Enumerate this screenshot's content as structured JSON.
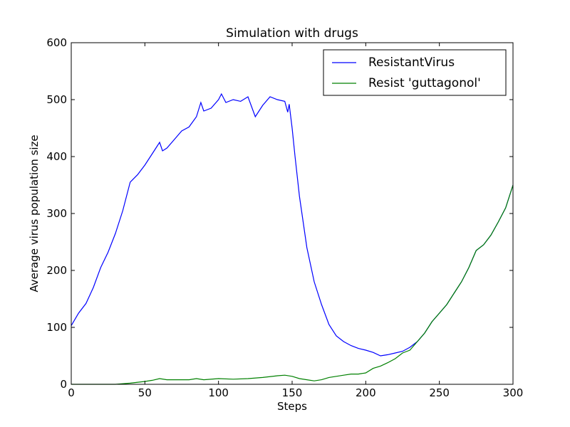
{
  "chart_data": {
    "type": "line",
    "title": "Simulation with drugs",
    "xlabel": "Steps",
    "ylabel": "Average virus population size",
    "xlim": [
      0,
      300
    ],
    "ylim": [
      0,
      600
    ],
    "xticks": [
      0,
      50,
      100,
      150,
      200,
      250,
      300
    ],
    "yticks": [
      0,
      100,
      200,
      300,
      400,
      500,
      600
    ],
    "grid": false,
    "legend_position": "top-right",
    "series": [
      {
        "name": "ResistantVirus",
        "color": "#0000ff",
        "x": [
          0,
          5,
          10,
          15,
          20,
          25,
          30,
          35,
          40,
          45,
          50,
          55,
          60,
          62,
          65,
          70,
          75,
          80,
          85,
          88,
          90,
          95,
          100,
          102,
          105,
          110,
          115,
          120,
          125,
          130,
          135,
          140,
          145,
          147,
          148,
          150,
          152,
          155,
          160,
          165,
          170,
          175,
          180,
          185,
          190,
          195,
          200,
          205,
          210,
          215,
          220,
          225,
          230,
          235,
          240,
          245,
          250,
          255,
          260,
          265,
          270,
          275,
          280,
          285,
          290,
          295,
          300
        ],
        "y": [
          103,
          125,
          142,
          170,
          205,
          232,
          265,
          305,
          355,
          368,
          385,
          405,
          425,
          410,
          415,
          430,
          445,
          452,
          470,
          495,
          480,
          485,
          500,
          510,
          495,
          500,
          497,
          505,
          470,
          490,
          505,
          500,
          497,
          478,
          492,
          450,
          400,
          330,
          240,
          180,
          140,
          105,
          85,
          75,
          68,
          63,
          60,
          56,
          50,
          52,
          55,
          58,
          65,
          75,
          90,
          110,
          125,
          140,
          160,
          180,
          205,
          235,
          245,
          262,
          285,
          310,
          350
        ]
      },
      {
        "name": "Resist 'guttagonol'",
        "color": "#008000",
        "x": [
          0,
          10,
          20,
          30,
          40,
          50,
          55,
          60,
          65,
          70,
          80,
          85,
          90,
          100,
          110,
          120,
          130,
          140,
          145,
          150,
          155,
          160,
          165,
          170,
          175,
          180,
          185,
          190,
          195,
          200,
          205,
          210,
          215,
          220,
          225,
          230,
          235,
          240,
          245,
          250,
          255,
          260,
          265,
          270,
          275,
          280,
          285,
          290,
          295,
          300
        ],
        "y": [
          0,
          0,
          0,
          0,
          2,
          5,
          7,
          10,
          8,
          8,
          8,
          10,
          8,
          10,
          9,
          10,
          12,
          15,
          16,
          14,
          10,
          8,
          6,
          8,
          12,
          14,
          16,
          18,
          18,
          20,
          28,
          32,
          38,
          45,
          55,
          60,
          75,
          90,
          110,
          125,
          140,
          160,
          180,
          205,
          235,
          245,
          262,
          285,
          310,
          350
        ]
      }
    ]
  }
}
